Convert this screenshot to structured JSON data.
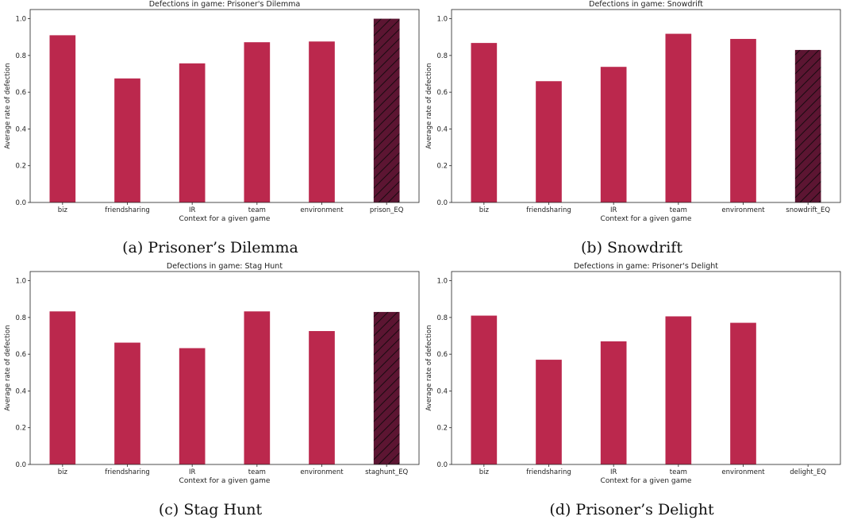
{
  "colors": {
    "bar": "#bb284d",
    "eq_bar": "#5c1532",
    "hatch": "#1a0a10",
    "axis": "#222222"
  },
  "chart_data": [
    {
      "type": "bar",
      "title": "Defections in game: Prisoner's Dilemma",
      "xlabel": "Context for a given game",
      "ylabel": "Average rate of defection",
      "ylim": [
        0,
        1.05
      ],
      "yticks": [
        "0.0",
        "0.2",
        "0.4",
        "0.6",
        "0.8",
        "1.0"
      ],
      "categories": [
        "biz",
        "friendsharing",
        "IR",
        "team",
        "environment",
        "prison_EQ"
      ],
      "values": [
        0.91,
        0.675,
        0.757,
        0.872,
        0.876,
        1.0
      ],
      "equilibrium_index": 5,
      "caption": "(a) Prisoner’s Dilemma"
    },
    {
      "type": "bar",
      "title": "Defections in game: Snowdrift",
      "xlabel": "Context for a given game",
      "ylabel": "Average rate of defection",
      "ylim": [
        0,
        1.05
      ],
      "yticks": [
        "0.0",
        "0.2",
        "0.4",
        "0.6",
        "0.8",
        "1.0"
      ],
      "categories": [
        "biz",
        "friendsharing",
        "IR",
        "team",
        "environment",
        "snowdrift_EQ"
      ],
      "values": [
        0.868,
        0.66,
        0.738,
        0.918,
        0.89,
        0.83
      ],
      "equilibrium_index": 5,
      "caption": "(b) Snowdrift"
    },
    {
      "type": "bar",
      "title": "Defections in game: Stag Hunt",
      "xlabel": "Context for a given game",
      "ylabel": "Average rate of defection",
      "ylim": [
        0,
        1.05
      ],
      "yticks": [
        "0.0",
        "0.2",
        "0.4",
        "0.6",
        "0.8",
        "1.0"
      ],
      "categories": [
        "biz",
        "friendsharing",
        "IR",
        "team",
        "environment",
        "staghunt_EQ"
      ],
      "values": [
        0.833,
        0.663,
        0.633,
        0.833,
        0.726,
        0.83
      ],
      "equilibrium_index": 5,
      "caption": "(c) Stag Hunt"
    },
    {
      "type": "bar",
      "title": "Defections in game: Prisoner's Delight",
      "xlabel": "Context for a given game",
      "ylabel": "Average rate of defection",
      "ylim": [
        0,
        1.05
      ],
      "yticks": [
        "0.0",
        "0.2",
        "0.4",
        "0.6",
        "0.8",
        "1.0"
      ],
      "categories": [
        "biz",
        "friendsharing",
        "IR",
        "team",
        "environment",
        "delight_EQ"
      ],
      "values": [
        0.81,
        0.57,
        0.67,
        0.806,
        0.771,
        0.0
      ],
      "equilibrium_index": 5,
      "caption": "(d) Prisoner’s Delight"
    }
  ]
}
